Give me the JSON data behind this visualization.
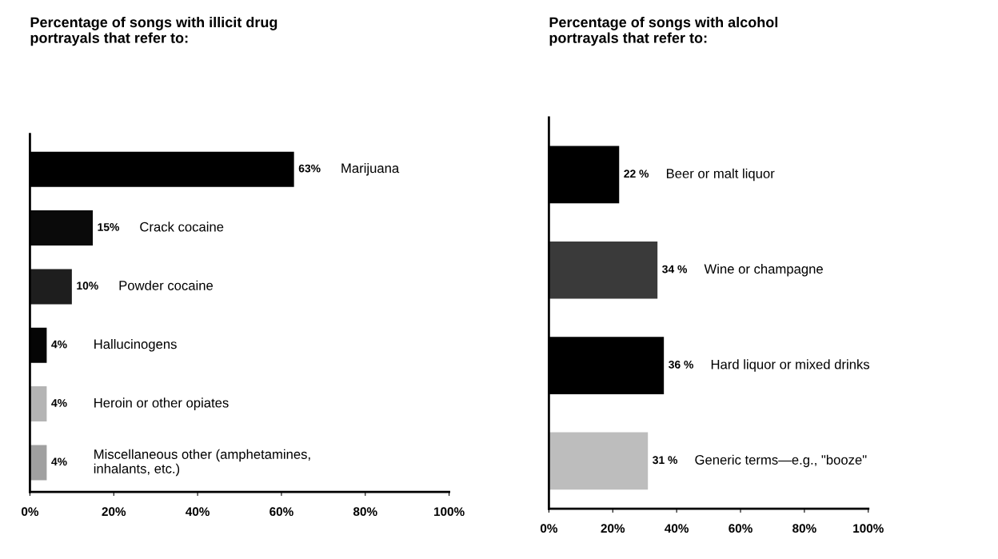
{
  "chart_data": [
    {
      "type": "bar",
      "orientation": "horizontal",
      "title": "Percentage of songs with illicit drug\nportrayals that refer to:",
      "categories": [
        "Marijuana",
        "Crack cocaine",
        "Powder cocaine",
        "Hallucinogens",
        "Heroin or other opiates",
        "Miscellaneous other (amphetamines,\ninhalants, etc.)"
      ],
      "values": [
        63,
        15,
        10,
        4,
        4,
        4
      ],
      "colors": [
        "#000000",
        "#0a0a0a",
        "#1e1e1e",
        "#050505",
        "#b4b4b4",
        "#a0a0a0"
      ],
      "value_labels": [
        "63%",
        "15%",
        "10%",
        "4%",
        "4%",
        "4%"
      ],
      "xlim": [
        0,
        100
      ],
      "xticks": [
        {
          "value": 0,
          "label": "0%"
        },
        {
          "value": 20,
          "label": "20%"
        },
        {
          "value": 40,
          "label": "40%"
        },
        {
          "value": 60,
          "label": "60%"
        },
        {
          "value": 80,
          "label": "80%"
        },
        {
          "value": 100,
          "label": "100%"
        }
      ],
      "tick_labels": "x",
      "grid": false,
      "legend": false
    },
    {
      "type": "bar",
      "orientation": "horizontal",
      "title": "Percentage of songs with alcohol\nportrayals that refer to:",
      "categories": [
        "Beer or malt liquor",
        "Wine or champagne",
        "Hard liquor or mixed drinks",
        "Generic terms—e.g., \"booze\""
      ],
      "values": [
        22,
        34,
        36,
        31
      ],
      "colors": [
        "#000000",
        "#3a3a3a",
        "#000000",
        "#bdbdbd"
      ],
      "value_labels": [
        "22 %",
        "34 %",
        "36 %",
        "31 %"
      ],
      "xlim": [
        0,
        100
      ],
      "xticks": [
        {
          "value": 0,
          "label": "0%"
        },
        {
          "value": 20,
          "label": "20%"
        },
        {
          "value": 40,
          "label": "40%"
        },
        {
          "value": 60,
          "label": "60%"
        },
        {
          "value": 80,
          "label": "80%"
        },
        {
          "value": 100,
          "label": "100%"
        }
      ],
      "tick_labels": "x",
      "grid": false,
      "legend": false
    }
  ]
}
